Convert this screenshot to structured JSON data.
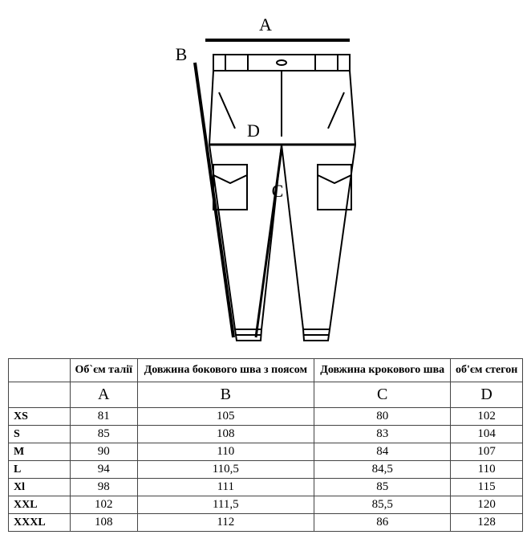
{
  "diagram": {
    "labelA": "A",
    "labelB": "B",
    "labelC": "C",
    "labelD": "D",
    "stroke": "#000000",
    "bg": "#ffffff"
  },
  "table": {
    "type": "table",
    "headers": {
      "col1": "Об`єм талії",
      "col2": "Довжина бокового шва з поясом",
      "col3": "Довжина крокового шва",
      "col4": "об'єм стегон"
    },
    "letters": {
      "c1": "A",
      "c2": "B",
      "c3": "C",
      "c4": "D"
    },
    "rows": [
      {
        "size": "XS",
        "a": "81",
        "b": "105",
        "c": "80",
        "d": "102"
      },
      {
        "size": "S",
        "a": "85",
        "b": "108",
        "c": "83",
        "d": "104"
      },
      {
        "size": "M",
        "a": "90",
        "b": "110",
        "c": "84",
        "d": "107"
      },
      {
        "size": "L",
        "a": "94",
        "b": "110,5",
        "c": "84,5",
        "d": "110"
      },
      {
        "size": "Xl",
        "a": "98",
        "b": "111",
        "c": "85",
        "d": "115"
      },
      {
        "size": "XXL",
        "a": "102",
        "b": "111,5",
        "c": "85,5",
        "d": "120"
      },
      {
        "size": "XXXL",
        "a": "108",
        "b": "112",
        "c": "86",
        "d": "128"
      }
    ]
  }
}
